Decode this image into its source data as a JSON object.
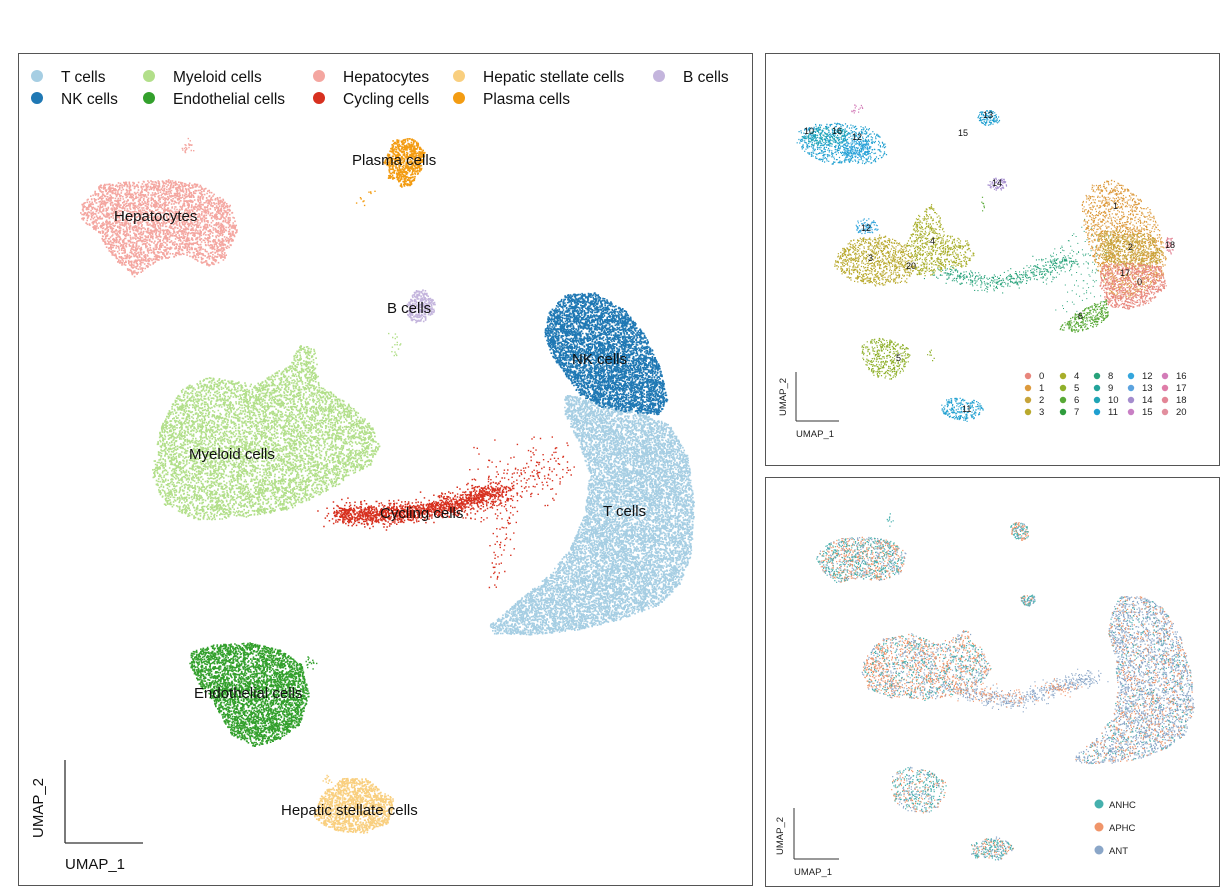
{
  "chart_data": [
    {
      "type": "scatter",
      "xlabel": "UMAP_1",
      "ylabel": "UMAP_2",
      "legend_position": "top",
      "series": [
        {
          "name": "T cells",
          "color": "#a6cee3"
        },
        {
          "name": "NK cells",
          "color": "#1f78b4"
        },
        {
          "name": "Myeloid cells",
          "color": "#b2df8a"
        },
        {
          "name": "Endothelial cells",
          "color": "#33a02c"
        },
        {
          "name": "Hepatocytes",
          "color": "#f4a6a0"
        },
        {
          "name": "Cycling cells",
          "color": "#d7301f"
        },
        {
          "name": "Hepatic stellate cells",
          "color": "#f9cf7f"
        },
        {
          "name": "Plasma cells",
          "color": "#f39c12"
        },
        {
          "name": "B cells",
          "color": "#c4b5dd"
        }
      ],
      "annotations": [
        "Hepatocytes",
        "Plasma cells",
        "B cells",
        "NK cells",
        "Myeloid cells",
        "Cycling cells",
        "T cells",
        "Endothelial cells",
        "Hepatic stellate cells"
      ]
    },
    {
      "type": "scatter",
      "xlabel": "UMAP_1",
      "ylabel": "UMAP_2",
      "legend_position": "bottom-right",
      "clusters": [
        "0",
        "1",
        "2",
        "3",
        "4",
        "5",
        "6",
        "7",
        "8",
        "9",
        "10",
        "11",
        "12",
        "13",
        "14",
        "15",
        "16",
        "17",
        "18",
        "20"
      ],
      "cluster_colors": [
        "#e8867c",
        "#dd9a3c",
        "#c6a43a",
        "#b9a92d",
        "#a8ae2a",
        "#8fb02b",
        "#58a936",
        "#2e9c3c",
        "#27a27a",
        "#22a39a",
        "#1fa4b5",
        "#1e9fd0",
        "#34a6dd",
        "#5ba3df",
        "#a48ccd",
        "#c87fc4",
        "#d37cb8",
        "#df7da8",
        "#e38596",
        "#e28e9e"
      ],
      "annotations": [
        "10",
        "16",
        "12",
        "13",
        "15",
        "14",
        "1",
        "12",
        "4",
        "2",
        "18",
        "3",
        "20",
        "17",
        "0",
        "6",
        "5",
        "11"
      ]
    },
    {
      "type": "scatter",
      "xlabel": "UMAP_1",
      "ylabel": "UMAP_2",
      "legend_position": "bottom-right",
      "series": [
        {
          "name": "ANHC",
          "color": "#45b0ad"
        },
        {
          "name": "APHC",
          "color": "#f0956a"
        },
        {
          "name": "ANT",
          "color": "#8aa6c8"
        }
      ]
    }
  ]
}
